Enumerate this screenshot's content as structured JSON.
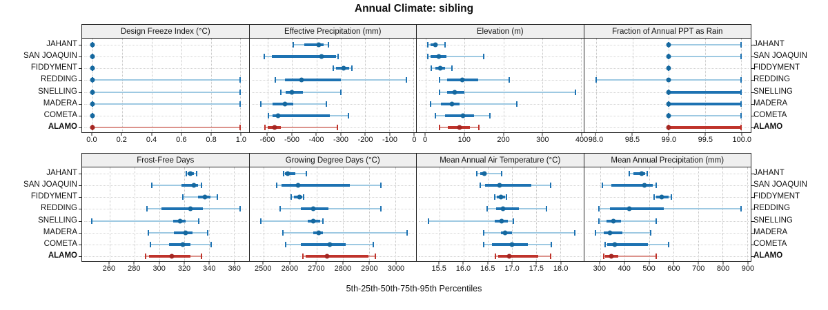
{
  "title": "Annual Climate: sibling",
  "caption": "5th-25th-50th-75th-95th Percentiles",
  "sites": [
    "JAHANT",
    "SAN JOAQUIN",
    "FIDDYMENT",
    "REDDING",
    "SNELLING",
    "MADERA",
    "COMETA",
    "ALAMO"
  ],
  "highlight_site": "ALAMO",
  "percentiles": [
    5,
    25,
    50,
    75,
    95
  ],
  "colors": {
    "blue": "#1d72b2",
    "blue_light": "#9ec9e2",
    "blue_dot": "#15689f",
    "red": "#bf332b",
    "red_light": "#dc938c",
    "red_dot": "#a42622",
    "strip_bg": "#efefef",
    "border": "#222222",
    "grid": "#c4c4c4",
    "row_guide": "#d2d2d2"
  },
  "chart_data": [
    {
      "type": "scatter",
      "subtype": "percentile-interval",
      "title": "Design Freeze Index (°C)",
      "row": 0,
      "col": 0,
      "xlim": [
        -0.069,
        1.056
      ],
      "ticks": [
        {
          "v": 0,
          "label": "0.0"
        },
        {
          "v": 0.2,
          "label": "0.2"
        },
        {
          "v": 0.4,
          "label": "0.4"
        },
        {
          "v": 0.6,
          "label": "0.6"
        },
        {
          "v": 0.8,
          "label": "0.8"
        },
        {
          "v": 1.0,
          "label": "1.0"
        }
      ],
      "series": [
        {
          "site": "JAHANT",
          "values": [
            0,
            0,
            0,
            0,
            0
          ]
        },
        {
          "site": "SAN JOAQUIN",
          "values": [
            0,
            0,
            0,
            0,
            0
          ]
        },
        {
          "site": "FIDDYMENT",
          "values": [
            0,
            0,
            0,
            0,
            0
          ]
        },
        {
          "site": "REDDING",
          "values": [
            0,
            0,
            0,
            0,
            1
          ]
        },
        {
          "site": "SNELLING",
          "values": [
            0,
            0,
            0,
            0,
            1
          ]
        },
        {
          "site": "MADERA",
          "values": [
            0,
            0,
            0,
            0,
            1
          ]
        },
        {
          "site": "COMETA",
          "values": [
            0,
            0,
            0,
            0,
            0
          ]
        },
        {
          "site": "ALAMO",
          "values": [
            0,
            0,
            0,
            0,
            1
          ]
        }
      ]
    },
    {
      "type": "scatter",
      "subtype": "percentile-interval",
      "title": "Effective Precipitation (mm)",
      "row": 0,
      "col": 1,
      "xlim": [
        -676,
        10
      ],
      "ticks": [
        {
          "v": -600,
          "label": "-600"
        },
        {
          "v": -500,
          "label": "-500"
        },
        {
          "v": -400,
          "label": "-400"
        },
        {
          "v": -300,
          "label": "-300"
        },
        {
          "v": -200,
          "label": "-200"
        },
        {
          "v": -100,
          "label": "-100"
        },
        {
          "v": 0,
          "label": "0"
        }
      ],
      "series": [
        {
          "site": "JAHANT",
          "values": [
            -495,
            -450,
            -390,
            -370,
            -350
          ]
        },
        {
          "site": "SAN JOAQUIN",
          "values": [
            -615,
            -585,
            -380,
            -320,
            -310
          ]
        },
        {
          "site": "FIDDYMENT",
          "values": [
            -330,
            -320,
            -288,
            -265,
            -253
          ]
        },
        {
          "site": "REDDING",
          "values": [
            -570,
            -530,
            -462,
            -300,
            -30
          ]
        },
        {
          "site": "SNELLING",
          "values": [
            -548,
            -528,
            -500,
            -455,
            -300
          ]
        },
        {
          "site": "MADERA",
          "values": [
            -630,
            -580,
            -530,
            -495,
            -360
          ]
        },
        {
          "site": "COMETA",
          "values": [
            -598,
            -580,
            -558,
            -345,
            -267
          ]
        },
        {
          "site": "ALAMO",
          "values": [
            -612,
            -600,
            -572,
            -548,
            -315
          ]
        }
      ]
    },
    {
      "type": "scatter",
      "subtype": "percentile-interval",
      "title": "Elevation (m)",
      "row": 0,
      "col": 2,
      "xlim": [
        -23,
        406
      ],
      "ticks": [
        {
          "v": 0,
          "label": "0"
        },
        {
          "v": 100,
          "label": "100"
        },
        {
          "v": 200,
          "label": "200"
        },
        {
          "v": 300,
          "label": "300"
        },
        {
          "v": 400,
          "label": "400"
        }
      ],
      "series": [
        {
          "site": "JAHANT",
          "values": [
            5,
            12,
            25,
            31,
            50
          ]
        },
        {
          "site": "SAN JOAQUIN",
          "values": [
            6,
            13,
            34,
            54,
            150
          ]
        },
        {
          "site": "FIDDYMENT",
          "values": [
            15,
            25,
            37,
            49,
            67
          ]
        },
        {
          "site": "REDDING",
          "values": [
            35,
            55,
            95,
            135,
            215
          ]
        },
        {
          "site": "SNELLING",
          "values": [
            35,
            55,
            75,
            100,
            385
          ]
        },
        {
          "site": "MADERA",
          "values": [
            12,
            40,
            68,
            87,
            235
          ]
        },
        {
          "site": "COMETA",
          "values": [
            25,
            50,
            96,
            125,
            165
          ]
        },
        {
          "site": "ALAMO",
          "values": [
            35,
            57,
            87,
            113,
            137
          ]
        }
      ]
    },
    {
      "type": "scatter",
      "subtype": "percentile-interval",
      "title": "Fraction of Annual PPT as Rain",
      "row": 0,
      "col": 3,
      "xlim": [
        97.83,
        100.13
      ],
      "ticks": [
        {
          "v": 98.0,
          "label": "98.0"
        },
        {
          "v": 98.5,
          "label": "98.5"
        },
        {
          "v": 99.0,
          "label": "99.0"
        },
        {
          "v": 99.5,
          "label": "99.5"
        },
        {
          "v": 100.0,
          "label": "100.0"
        }
      ],
      "series": [
        {
          "site": "JAHANT",
          "values": [
            99,
            99,
            99,
            99,
            100
          ]
        },
        {
          "site": "SAN JOAQUIN",
          "values": [
            99,
            99,
            99,
            99,
            100
          ]
        },
        {
          "site": "FIDDYMENT",
          "values": [
            99,
            99,
            99,
            99,
            99
          ]
        },
        {
          "site": "REDDING",
          "values": [
            98,
            99,
            99,
            99,
            100
          ]
        },
        {
          "site": "SNELLING",
          "values": [
            99,
            99,
            99,
            100,
            100
          ]
        },
        {
          "site": "MADERA",
          "values": [
            99,
            99,
            99,
            100,
            100
          ]
        },
        {
          "site": "COMETA",
          "values": [
            99,
            99,
            99,
            99,
            100
          ]
        },
        {
          "site": "ALAMO",
          "values": [
            99,
            99,
            99,
            100,
            100
          ]
        }
      ]
    },
    {
      "type": "scatter",
      "subtype": "percentile-interval",
      "title": "Frost-Free Days",
      "row": 1,
      "col": 0,
      "xlim": [
        238,
        372
      ],
      "ticks": [
        {
          "v": 260,
          "label": "260"
        },
        {
          "v": 280,
          "label": "280"
        },
        {
          "v": 300,
          "label": "300"
        },
        {
          "v": 320,
          "label": "320"
        },
        {
          "v": 340,
          "label": "340"
        },
        {
          "v": 360,
          "label": "360"
        }
      ],
      "series": [
        {
          "site": "JAHANT",
          "values": [
            322,
            323,
            325,
            328,
            330
          ]
        },
        {
          "site": "SAN JOAQUIN",
          "values": [
            294,
            318,
            328,
            331,
            334
          ]
        },
        {
          "site": "FIDDYMENT",
          "values": [
            319,
            331,
            337,
            341,
            347
          ]
        },
        {
          "site": "REDDING",
          "values": [
            290,
            302,
            325,
            335,
            365
          ]
        },
        {
          "site": "SNELLING",
          "values": [
            246,
            311,
            317,
            321,
            332
          ]
        },
        {
          "site": "MADERA",
          "values": [
            291,
            312,
            321,
            327,
            339
          ]
        },
        {
          "site": "COMETA",
          "values": [
            293,
            308,
            319,
            325,
            342
          ]
        },
        {
          "site": "ALAMO",
          "values": [
            289,
            292,
            310,
            325,
            334
          ]
        }
      ]
    },
    {
      "type": "scatter",
      "subtype": "percentile-interval",
      "title": "Growing Degree Days (°C)",
      "row": 1,
      "col": 1,
      "xlim": [
        2446,
        3078
      ],
      "ticks": [
        {
          "v": 2500,
          "label": "2500"
        },
        {
          "v": 2600,
          "label": "2600"
        },
        {
          "v": 2700,
          "label": "2700"
        },
        {
          "v": 2800,
          "label": "2800"
        },
        {
          "v": 2900,
          "label": "2900"
        },
        {
          "v": 3000,
          "label": "3000"
        }
      ],
      "series": [
        {
          "site": "JAHANT",
          "values": [
            2576,
            2581,
            2592,
            2620,
            2661
          ]
        },
        {
          "site": "SAN JOAQUIN",
          "values": [
            2550,
            2568,
            2630,
            2828,
            2944
          ]
        },
        {
          "site": "FIDDYMENT",
          "values": [
            2604,
            2615,
            2637,
            2646,
            2652
          ]
        },
        {
          "site": "REDDING",
          "values": [
            2563,
            2642,
            2689,
            2746,
            2944
          ]
        },
        {
          "site": "SNELLING",
          "values": [
            2490,
            2668,
            2689,
            2715,
            2724
          ]
        },
        {
          "site": "MADERA",
          "values": [
            2572,
            2689,
            2708,
            2724,
            3045
          ]
        },
        {
          "site": "COMETA",
          "values": [
            2583,
            2642,
            2750,
            2811,
            2915
          ]
        },
        {
          "site": "ALAMO",
          "values": [
            2650,
            2659,
            2740,
            2898,
            2923
          ]
        }
      ]
    },
    {
      "type": "scatter",
      "subtype": "percentile-interval",
      "title": "Mean Annual Air Temperature (°C)",
      "row": 1,
      "col": 2,
      "xlim": [
        15.03,
        18.48
      ],
      "ticks": [
        {
          "v": 15.5,
          "label": "15.5"
        },
        {
          "v": 16.0,
          "label": "16.0"
        },
        {
          "v": 16.5,
          "label": "16.5"
        },
        {
          "v": 17.0,
          "label": "17.0"
        },
        {
          "v": 17.5,
          "label": "17.5"
        },
        {
          "v": 18.0,
          "label": "18.0"
        }
      ],
      "series": [
        {
          "site": "JAHANT",
          "values": [
            16.27,
            16.34,
            16.43,
            16.48,
            16.78
          ]
        },
        {
          "site": "SAN JOAQUIN",
          "values": [
            16.34,
            16.45,
            16.74,
            17.4,
            17.8
          ]
        },
        {
          "site": "FIDDYMENT",
          "values": [
            16.65,
            16.69,
            16.77,
            16.86,
            16.89
          ]
        },
        {
          "site": "REDDING",
          "values": [
            16.48,
            16.67,
            16.81,
            17.14,
            17.72
          ]
        },
        {
          "site": "SNELLING",
          "values": [
            15.27,
            16.65,
            16.78,
            16.91,
            17.03
          ]
        },
        {
          "site": "MADERA",
          "values": [
            16.42,
            16.77,
            16.86,
            17.0,
            18.3
          ]
        },
        {
          "site": "COMETA",
          "values": [
            16.42,
            16.58,
            17.0,
            17.33,
            17.82
          ]
        },
        {
          "site": "ALAMO",
          "values": [
            16.66,
            16.72,
            16.95,
            17.55,
            17.8
          ]
        }
      ]
    },
    {
      "type": "scatter",
      "subtype": "percentile-interval",
      "title": "Mean Annual Precipitation (mm)",
      "row": 1,
      "col": 3,
      "xlim": [
        235,
        914
      ],
      "ticks": [
        {
          "v": 300,
          "label": "300"
        },
        {
          "v": 400,
          "label": "400"
        },
        {
          "v": 500,
          "label": "500"
        },
        {
          "v": 600,
          "label": "600"
        },
        {
          "v": 700,
          "label": "700"
        },
        {
          "v": 800,
          "label": "800"
        },
        {
          "v": 900,
          "label": "900"
        }
      ],
      "series": [
        {
          "site": "JAHANT",
          "values": [
            420,
            435,
            470,
            483,
            493
          ]
        },
        {
          "site": "SAN JOAQUIN",
          "values": [
            310,
            345,
            480,
            515,
            530
          ]
        },
        {
          "site": "FIDDYMENT",
          "values": [
            520,
            530,
            550,
            580,
            590
          ]
        },
        {
          "site": "REDDING",
          "values": [
            295,
            340,
            420,
            560,
            875
          ]
        },
        {
          "site": "SNELLING",
          "values": [
            295,
            325,
            355,
            385,
            530
          ]
        },
        {
          "site": "MADERA",
          "values": [
            280,
            315,
            340,
            390,
            505
          ]
        },
        {
          "site": "COMETA",
          "values": [
            320,
            330,
            360,
            495,
            580
          ]
        },
        {
          "site": "ALAMO",
          "values": [
            315,
            320,
            345,
            375,
            530
          ]
        }
      ]
    }
  ]
}
